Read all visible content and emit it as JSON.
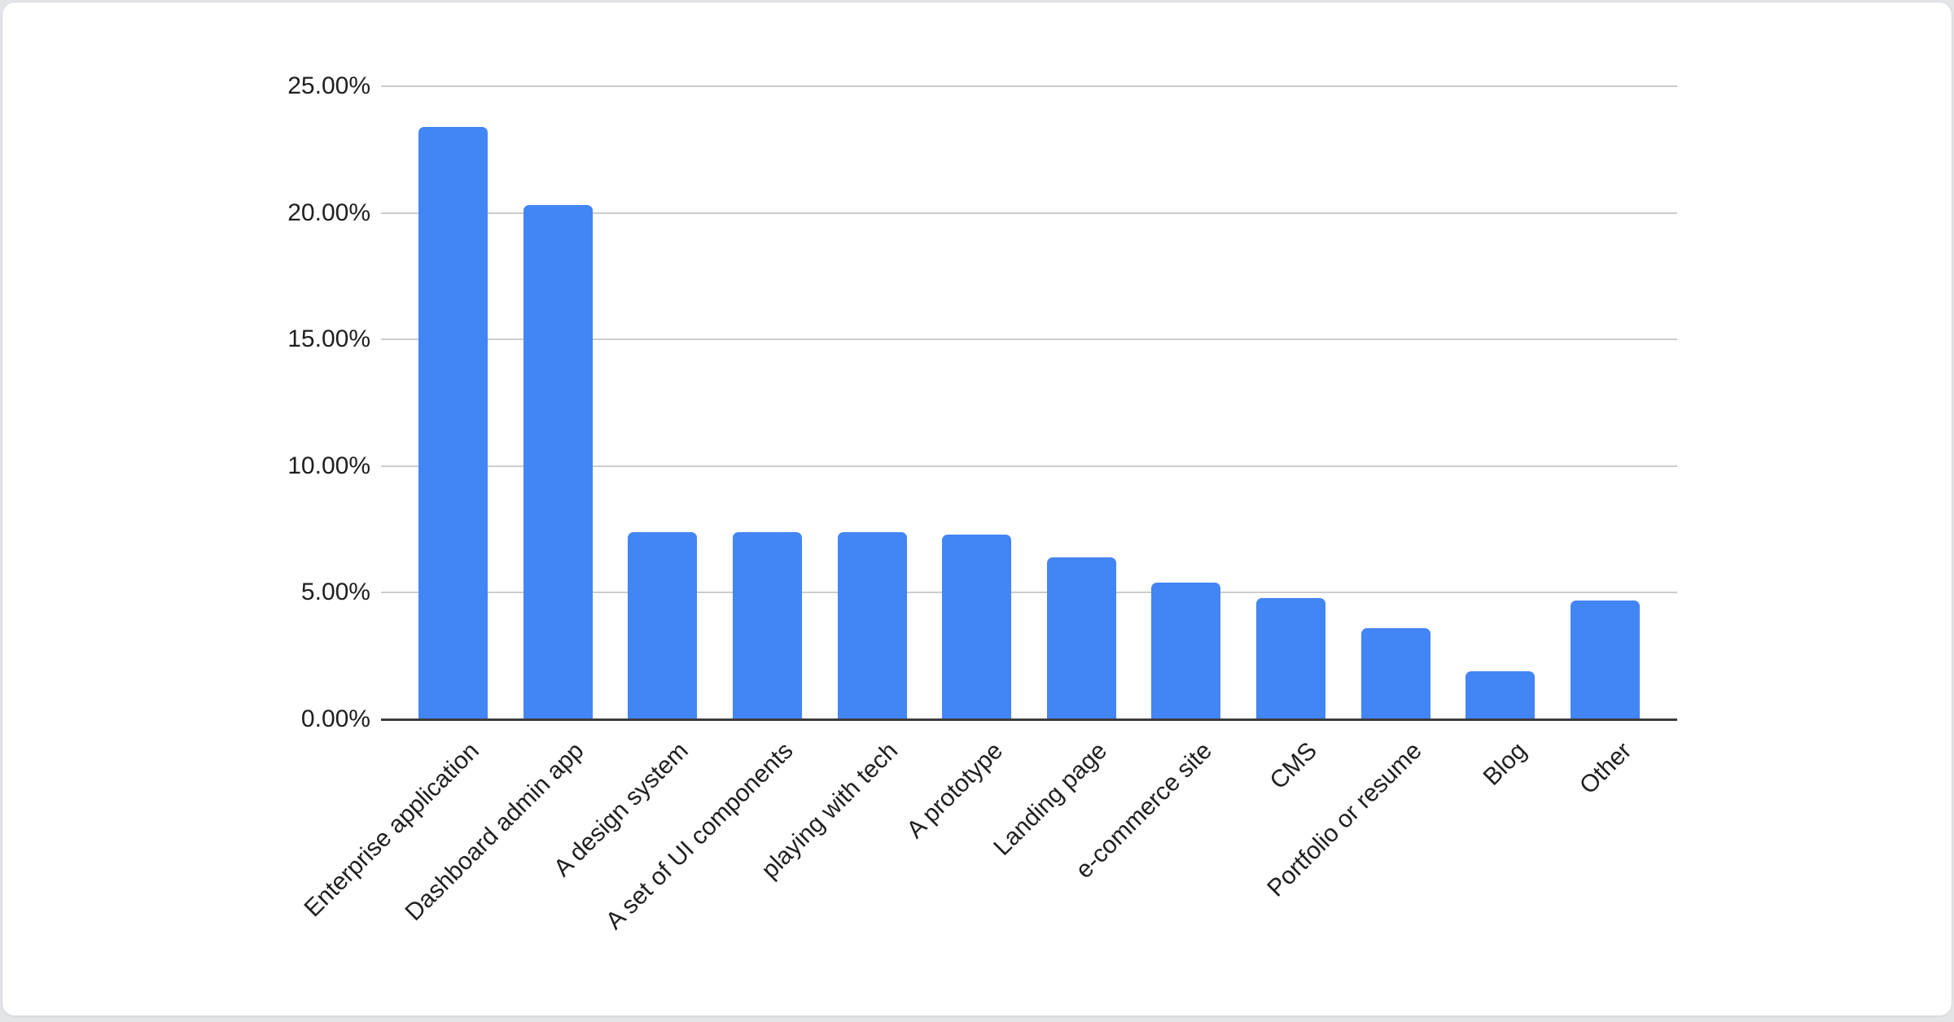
{
  "page": {
    "background_color": "#e4e5e9",
    "card": {
      "background_color": "#ffffff",
      "border_color": "#d7d8dc"
    }
  },
  "chart_data": {
    "type": "bar",
    "title": "",
    "xlabel": "",
    "ylabel": "",
    "categories": [
      "Enterprise application",
      "Dashboard admin app",
      "A design system",
      "A set of UI components",
      "playing with tech",
      "A prototype",
      "Landing page",
      "e-commerce site",
      "CMS",
      "Portfolio or resume",
      "Blog",
      "Other"
    ],
    "values": [
      23.4,
      20.3,
      7.4,
      7.4,
      7.4,
      7.3,
      6.4,
      5.4,
      4.8,
      3.6,
      1.9,
      4.7
    ],
    "value_unit": "%",
    "ylim": [
      0,
      25
    ],
    "y_ticks": [
      {
        "value": 25,
        "label": "25.00%"
      },
      {
        "value": 20,
        "label": "20.00%"
      },
      {
        "value": 15,
        "label": "15.00%"
      },
      {
        "value": 10,
        "label": "10.00%"
      },
      {
        "value": 5,
        "label": "5.00%"
      },
      {
        "value": 0,
        "label": "0.00%"
      }
    ],
    "grid": true,
    "legend_position": "none",
    "bar_color": "#4285f4",
    "grid_color": "#cccccc",
    "axis_color": "#3b3b3b",
    "text_color": "#1f1f1f"
  }
}
